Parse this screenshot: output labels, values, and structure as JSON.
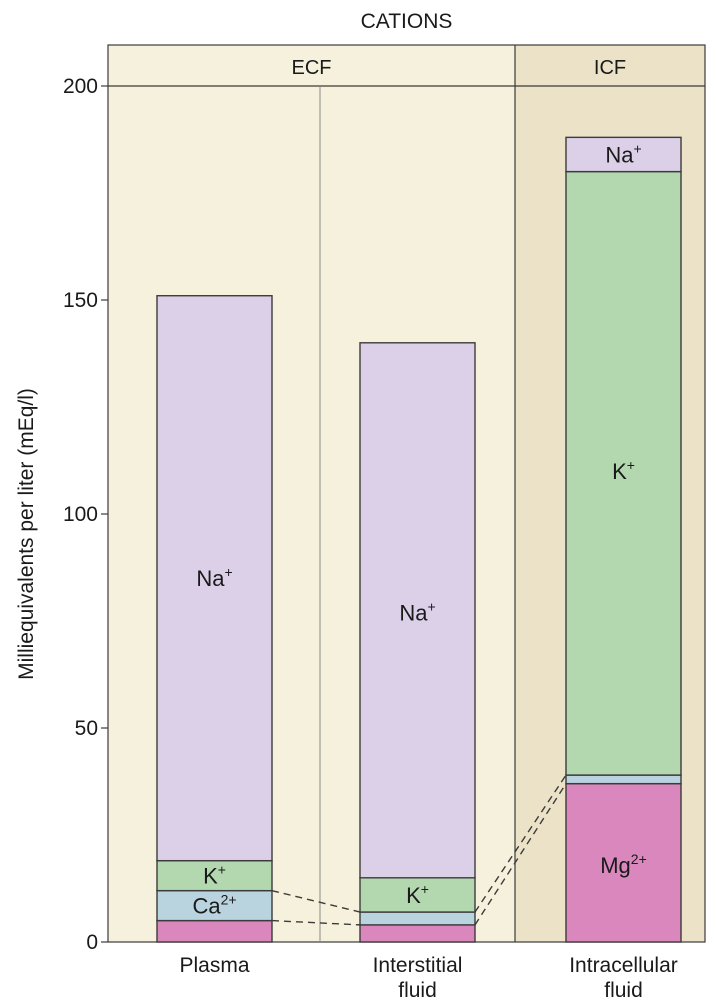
{
  "chart_data": {
    "type": "bar",
    "stacked": true,
    "title": "CATIONS",
    "ylabel": "Milliequivalents per liter (mEq/l)",
    "xlabel": "",
    "ylim": [
      0,
      200
    ],
    "yticks": [
      0,
      50,
      100,
      150,
      200
    ],
    "groups": [
      {
        "label": "ECF",
        "categories": [
          "Plasma",
          "Interstitial fluid"
        ]
      },
      {
        "label": "ICF",
        "categories": [
          "Intracellular fluid"
        ]
      }
    ],
    "categories": [
      {
        "line1": "Plasma",
        "line2": ""
      },
      {
        "line1": "Interstitial",
        "line2": "fluid"
      },
      {
        "line1": "Intracellular",
        "line2": "fluid"
      }
    ],
    "series": [
      {
        "name": "Mg2+",
        "color": "#d987bd",
        "values": [
          5,
          4,
          37
        ]
      },
      {
        "name": "Ca2+",
        "color": "#b9d3df",
        "values": [
          7,
          3,
          2
        ]
      },
      {
        "name": "K+",
        "color": "#b3d8b0",
        "values": [
          7,
          8,
          141
        ]
      },
      {
        "name": "Na+",
        "color": "#dcd0e8",
        "values": [
          132,
          125,
          8
        ]
      }
    ],
    "segment_labels": [
      [
        {
          "base": "Mg",
          "sup": "2+",
          "show": false
        },
        {
          "base": "Ca",
          "sup": "2+",
          "show": true
        },
        {
          "base": "K",
          "sup": "+",
          "show": true
        },
        {
          "base": "Na",
          "sup": "+",
          "show": true,
          "at": 85
        }
      ],
      [
        {
          "base": "Mg",
          "sup": "2+",
          "show": false
        },
        {
          "base": "Ca",
          "sup": "2+",
          "show": false
        },
        {
          "base": "K",
          "sup": "+",
          "show": true
        },
        {
          "base": "Na",
          "sup": "+",
          "show": true,
          "at": 77
        }
      ],
      [
        {
          "base": "Mg",
          "sup": "2+",
          "show": true,
          "at": 18
        },
        {
          "base": "Ca",
          "sup": "2+",
          "show": false
        },
        {
          "base": "K",
          "sup": "+",
          "show": true,
          "at": 110
        },
        {
          "base": "Na",
          "sup": "+",
          "show": true
        }
      ]
    ],
    "colors": {
      "ecf_background": "#f5f1dc",
      "icf_background": "#ebe2c7",
      "outline": "#3b3b3b"
    },
    "grid": false
  }
}
